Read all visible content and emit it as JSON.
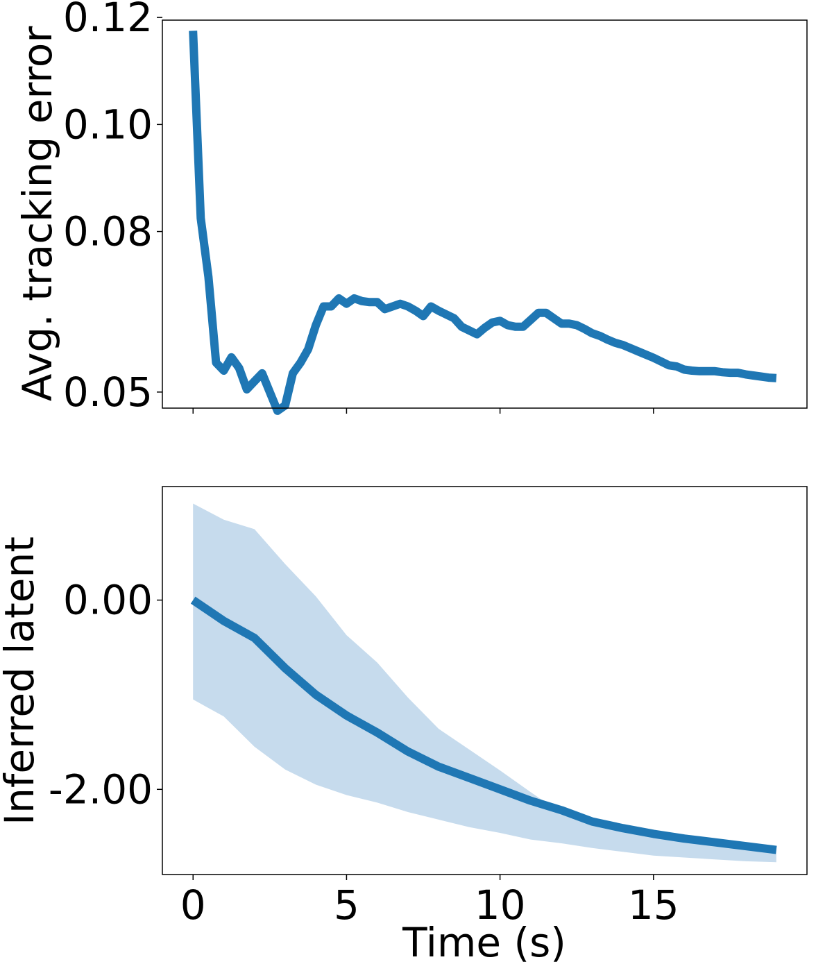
{
  "colors": {
    "line": "#1f77b4",
    "band": "#c6dbed"
  },
  "chart_data": [
    {
      "type": "line",
      "xlabel": "",
      "ylabel": "Avg. tracking error",
      "xlim": [
        -1.0,
        20.0
      ],
      "ylim": [
        0.047,
        0.1195
      ],
      "xticks": [
        0,
        5,
        10,
        15
      ],
      "show_xticklabels": false,
      "yticks": [
        0.05,
        0.08,
        0.1,
        0.12
      ],
      "ytick_labels": [
        "0.05",
        "0.08",
        "0.10",
        "0.12"
      ],
      "grid": false,
      "series": [
        {
          "x": [
            0.0,
            0.25,
            0.5,
            0.75,
            1.0,
            1.25,
            1.5,
            1.75,
            2.0,
            2.25,
            2.5,
            2.75,
            3.0,
            3.25,
            3.5,
            3.75,
            4.0,
            4.25,
            4.5,
            4.75,
            5.0,
            5.25,
            5.5,
            5.75,
            6.0,
            6.25,
            6.5,
            6.75,
            7.0,
            7.25,
            7.5,
            7.75,
            8.0,
            8.25,
            8.5,
            8.75,
            9.0,
            9.25,
            9.5,
            9.75,
            10.0,
            10.25,
            10.5,
            10.75,
            11.0,
            11.25,
            11.5,
            11.75,
            12.0,
            12.25,
            12.5,
            12.75,
            13.0,
            13.25,
            13.5,
            13.75,
            14.0,
            14.25,
            14.5,
            14.75,
            15.0,
            15.25,
            15.5,
            15.75,
            16.0,
            16.25,
            16.5,
            16.75,
            17.0,
            17.25,
            17.5,
            17.75,
            18.0,
            18.25,
            18.5,
            18.75,
            19.0
          ],
          "y": [
            0.1175,
            0.0825,
            0.0715,
            0.0555,
            0.054,
            0.0565,
            0.0545,
            0.0505,
            0.052,
            0.0535,
            0.05,
            0.0465,
            0.0475,
            0.0535,
            0.0555,
            0.058,
            0.0625,
            0.066,
            0.066,
            0.0675,
            0.0665,
            0.0675,
            0.067,
            0.0668,
            0.0668,
            0.0655,
            0.066,
            0.0665,
            0.066,
            0.0652,
            0.0642,
            0.066,
            0.0652,
            0.0645,
            0.0638,
            0.0622,
            0.0615,
            0.0608,
            0.062,
            0.063,
            0.0633,
            0.0625,
            0.0622,
            0.0622,
            0.0635,
            0.0648,
            0.0648,
            0.0638,
            0.0628,
            0.0628,
            0.0625,
            0.0618,
            0.061,
            0.0605,
            0.0598,
            0.0592,
            0.0588,
            0.0582,
            0.0576,
            0.057,
            0.0564,
            0.0557,
            0.055,
            0.0548,
            0.0542,
            0.054,
            0.0539,
            0.0539,
            0.0539,
            0.0537,
            0.0536,
            0.0536,
            0.0533,
            0.0531,
            0.0529,
            0.0527,
            0.0526
          ]
        }
      ]
    },
    {
      "type": "area",
      "xlabel": "Time (s)",
      "ylabel": "Inferred latent",
      "xlim": [
        -1.0,
        20.0
      ],
      "ylim": [
        -2.9,
        1.2
      ],
      "xticks": [
        0,
        5,
        10,
        15
      ],
      "xtick_labels": [
        "0",
        "5",
        "10",
        "15"
      ],
      "show_xticklabels": true,
      "yticks": [
        0.0,
        -2.0
      ],
      "ytick_labels": [
        "0.00",
        "-2.00"
      ],
      "grid": false,
      "series": [
        {
          "x": [
            0,
            1,
            2,
            3,
            4,
            5,
            6,
            7,
            8,
            9,
            10,
            11,
            12,
            13,
            14,
            15,
            16,
            17,
            18,
            19
          ],
          "y": [
            0.0,
            -0.22,
            -0.4,
            -0.72,
            -1.0,
            -1.22,
            -1.4,
            -1.6,
            -1.76,
            -1.88,
            -2.0,
            -2.12,
            -2.22,
            -2.34,
            -2.41,
            -2.47,
            -2.52,
            -2.56,
            -2.6,
            -2.64
          ],
          "lower": [
            -1.05,
            -1.23,
            -1.55,
            -1.79,
            -1.95,
            -2.06,
            -2.14,
            -2.24,
            -2.32,
            -2.4,
            -2.46,
            -2.53,
            -2.57,
            -2.62,
            -2.66,
            -2.7,
            -2.72,
            -2.74,
            -2.76,
            -2.77
          ],
          "upper": [
            1.02,
            0.85,
            0.75,
            0.38,
            0.04,
            -0.37,
            -0.66,
            -1.03,
            -1.36,
            -1.58,
            -1.8,
            -2.03,
            -2.25,
            -2.34,
            -2.42,
            -2.48,
            -2.53,
            -2.56,
            -2.6,
            -2.63
          ]
        }
      ]
    }
  ]
}
